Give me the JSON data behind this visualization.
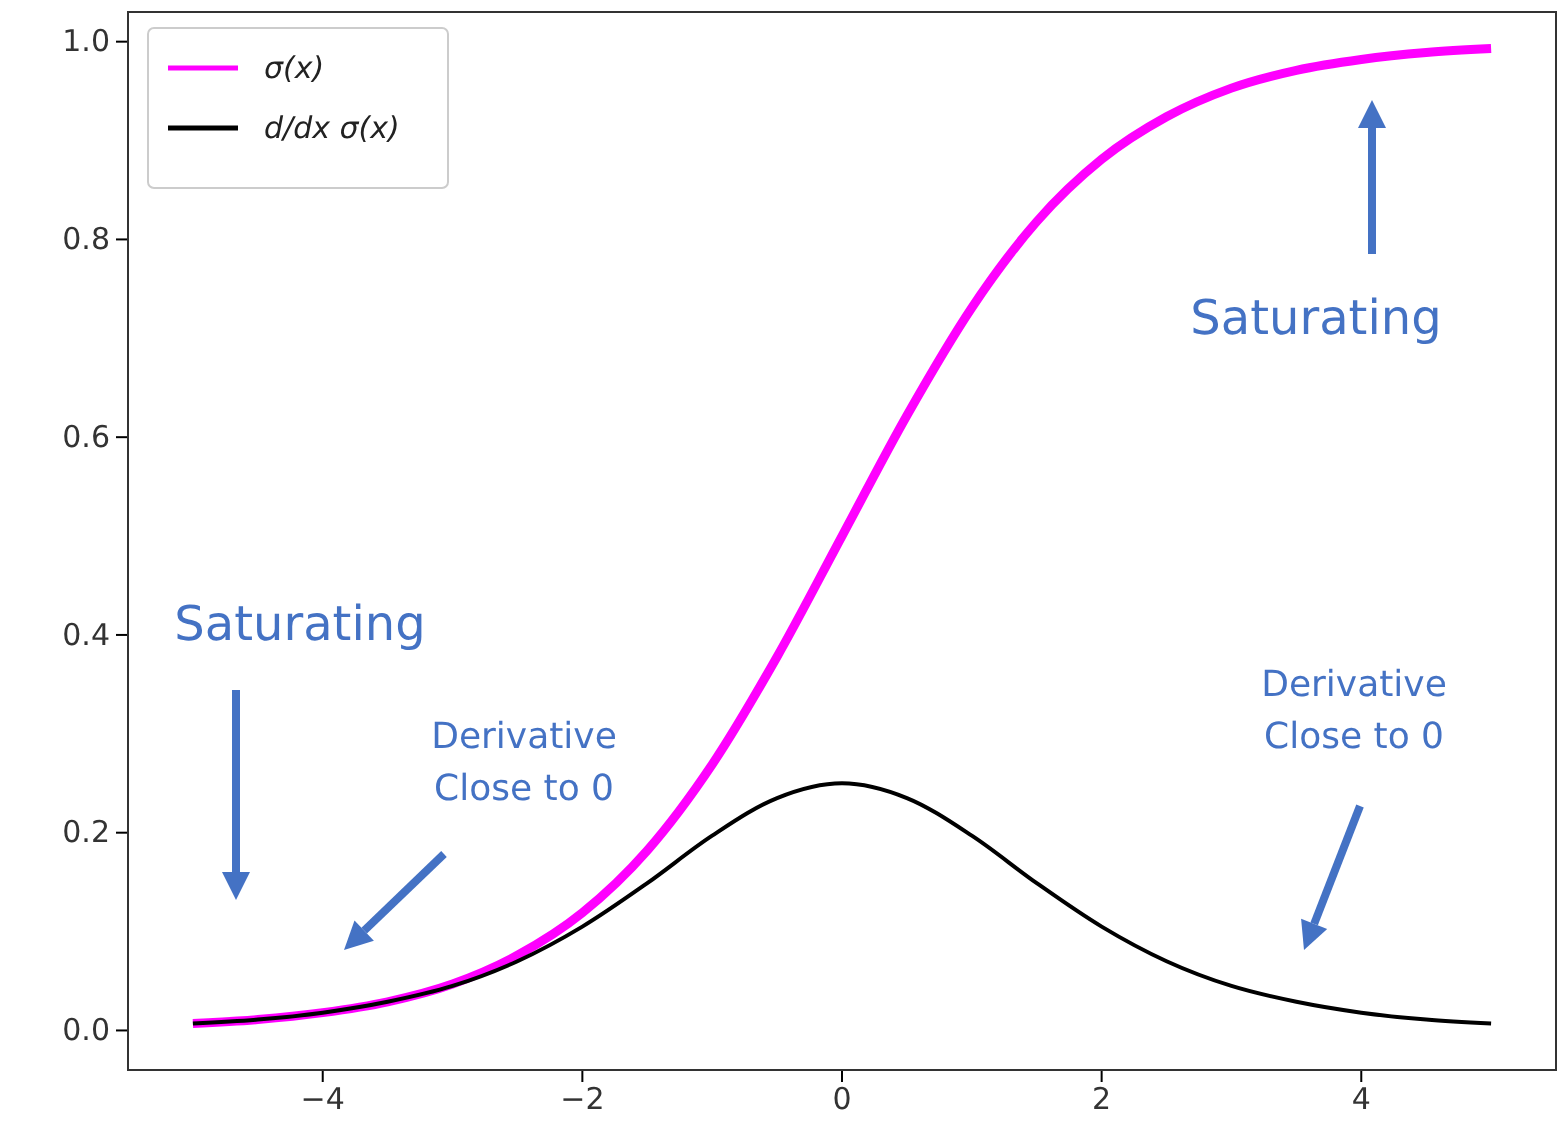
{
  "chart_data": {
    "type": "line",
    "x": [
      -5,
      -4.5,
      -4,
      -3.5,
      -3,
      -2.5,
      -2,
      -1.5,
      -1,
      -0.5,
      0,
      0.5,
      1,
      1.5,
      2,
      2.5,
      3,
      3.5,
      4,
      4.5,
      5
    ],
    "series": [
      {
        "name": "σ(x)",
        "color": "#ff00ff",
        "values": [
          0.007,
          0.011,
          0.018,
          0.029,
          0.047,
          0.076,
          0.119,
          0.182,
          0.269,
          0.378,
          0.5,
          0.622,
          0.731,
          0.818,
          0.881,
          0.924,
          0.953,
          0.971,
          0.982,
          0.989,
          0.993
        ]
      },
      {
        "name": "d/dx σ(x)",
        "color": "#000000",
        "values": [
          0.007,
          0.011,
          0.018,
          0.029,
          0.045,
          0.07,
          0.105,
          0.149,
          0.197,
          0.235,
          0.25,
          0.235,
          0.197,
          0.149,
          0.105,
          0.07,
          0.045,
          0.029,
          0.018,
          0.011,
          0.007
        ]
      }
    ],
    "xlim": [
      -5.5,
      5.5
    ],
    "ylim": [
      -0.04,
      1.03
    ],
    "xticks": [
      {
        "value": -4,
        "label": "−4"
      },
      {
        "value": -2,
        "label": "−2"
      },
      0,
      2,
      4
    ],
    "yticks": [
      {
        "value": 0,
        "label": "0.0"
      },
      {
        "value": 0.2,
        "label": "0.2"
      },
      {
        "value": 0.4,
        "label": "0.4"
      },
      {
        "value": 0.6,
        "label": "0.6"
      },
      {
        "value": 0.8,
        "label": "0.8"
      },
      {
        "value": 1,
        "label": "1.0"
      }
    ],
    "annotations": [
      "Saturating",
      "Saturating",
      "Derivative\nClose to 0",
      "Derivative\nClose to 0"
    ],
    "legend": "top left",
    "grid": false,
    "line_style": "solid",
    "marker": "none"
  }
}
